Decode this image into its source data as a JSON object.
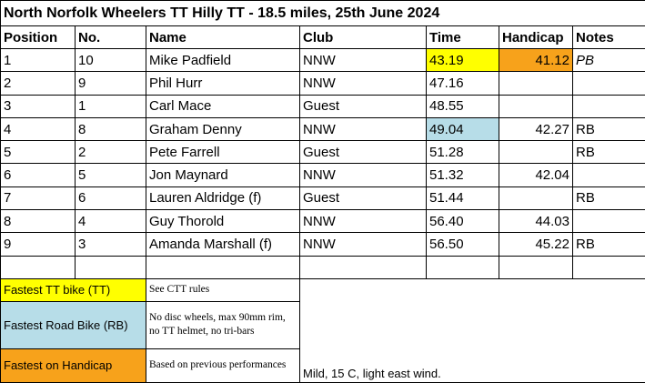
{
  "title": "North Norfolk Wheelers TT Hilly TT - 18.5 miles, 25th June 2024",
  "columns": [
    "Position",
    "No.",
    "Name",
    "Club",
    "Time",
    "Handicap",
    "Notes"
  ],
  "rows": [
    [
      "1",
      "10",
      "Mike Padfield",
      "NNW",
      "43.19",
      "41.12",
      "PB"
    ],
    [
      "2",
      "9",
      "Phil Hurr",
      "NNW",
      "47.16",
      null,
      null
    ],
    [
      "3",
      "1",
      "Carl Mace",
      "Guest",
      "48.55",
      null,
      null
    ],
    [
      "4",
      "8",
      "Graham Denny",
      "NNW",
      "49.04",
      "42.27",
      "RB"
    ],
    [
      "5",
      "2",
      "Pete Farrell",
      "Guest",
      "51.28",
      null,
      "RB"
    ],
    [
      "6",
      "5",
      "Jon Maynard",
      "NNW",
      "51.32",
      "42.04",
      null
    ],
    [
      "7",
      "6",
      "Lauren Aldridge (f)",
      "Guest",
      "51.44",
      null,
      "RB"
    ],
    [
      "8",
      "4",
      "Guy Thorold",
      "NNW",
      "56.40",
      "44.03",
      null
    ],
    [
      "9",
      "3",
      "Amanda Marshall (f)",
      "NNW",
      "56.50",
      "45.22",
      "RB"
    ]
  ],
  "legend": [
    {
      "label": "Fastest TT bike (TT)",
      "description": "See CTT rules",
      "color": "#ffff00"
    },
    {
      "label": "Fastest Road Bike (RB)",
      "description": "No disc wheels, max 90mm rim, no TT helmet, no tri-bars",
      "color": "#b7dde8"
    },
    {
      "label": "Fastest on Handicap",
      "description": "Based on previous performances",
      "color": "#f7a21b"
    }
  ],
  "weather": "Mild, 15 C, light east wind."
}
